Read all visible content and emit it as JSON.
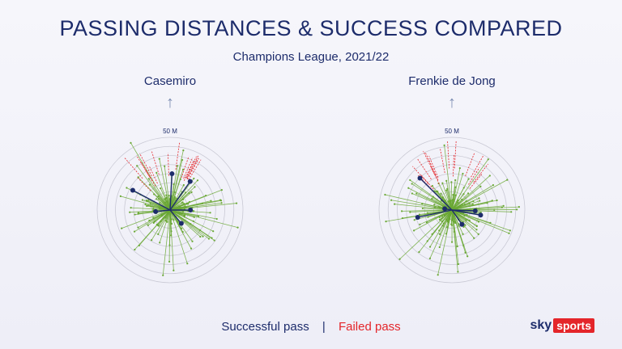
{
  "header": {
    "title": "PASSING DISTANCES & SUCCESS COMPARED",
    "subtitle": "Champions League, 2021/22"
  },
  "colors": {
    "success": "#6aa834",
    "failed": "#e4252a",
    "average": "#1d2c6b",
    "ring": "#c9c9d4"
  },
  "legend": {
    "success_label": "Successful pass",
    "separator": "|",
    "failed_label": "Failed pass"
  },
  "branding": {
    "sky": "sky",
    "sports": "sports"
  },
  "chart_data": [
    {
      "type": "radial",
      "player": "Casemiro",
      "direction_icon": "arrow-up-icon",
      "scale_label": "50 M",
      "ring_max_m": 50,
      "rings": 8,
      "average_passes": [
        {
          "angle_deg": 3,
          "length_m": 25
        },
        {
          "angle_deg": 35,
          "length_m": 24
        },
        {
          "angle_deg": 90,
          "length_m": 14
        },
        {
          "angle_deg": 140,
          "length_m": 12
        },
        {
          "angle_deg": 264,
          "length_m": 10
        },
        {
          "angle_deg": 298,
          "length_m": 29
        }
      ]
    },
    {
      "type": "radial",
      "player": "Frenkie de Jong",
      "direction_icon": "arrow-up-icon",
      "scale_label": "50 M",
      "ring_max_m": 50,
      "rings": 8,
      "average_passes": [
        {
          "angle_deg": 315,
          "length_m": 31
        },
        {
          "angle_deg": 258,
          "length_m": 24
        },
        {
          "angle_deg": 92,
          "length_m": 16
        },
        {
          "angle_deg": 100,
          "length_m": 20
        },
        {
          "angle_deg": 145,
          "length_m": 12
        },
        {
          "angle_deg": 280,
          "length_m": 5
        }
      ]
    }
  ]
}
